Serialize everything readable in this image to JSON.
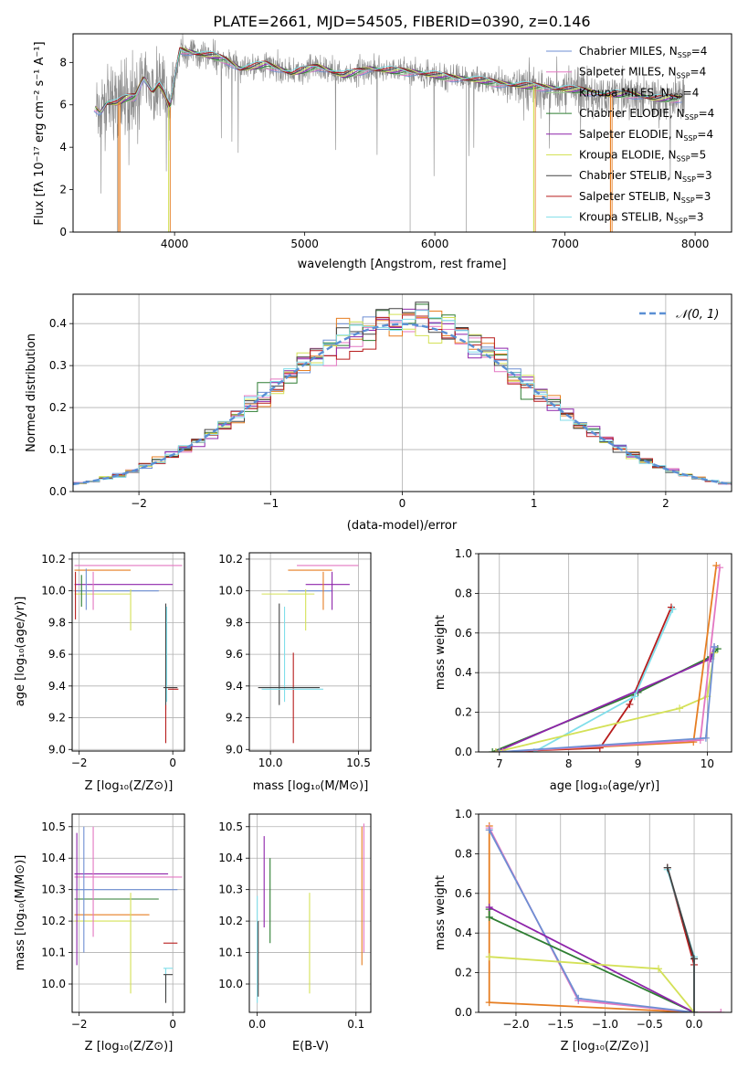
{
  "figure": {
    "title": "PLATE=2661, MJD=54505, FIBERID=0390, z=0.146"
  },
  "chart_data": [
    {
      "id": "spectrum",
      "type": "line",
      "xlabel": "wavelength [Angstrom, rest frame]",
      "ylabel": "Flux [fλ 10⁻¹⁷ erg cm⁻² s⁻¹ A⁻¹]",
      "xlim": [
        3220,
        8280
      ],
      "ylim": [
        0,
        9.35
      ],
      "xticks": [
        4000,
        5000,
        6000,
        7000,
        8000
      ],
      "yticks": [
        0,
        2,
        4,
        6,
        8
      ],
      "legend_position": "top-right",
      "legend": [
        {
          "label": "Chabrier MILES, N",
          "sub": "SSP",
          "tail": "=4",
          "color": "#6e8fd3"
        },
        {
          "label": "Salpeter MILES, N",
          "sub": "SSP",
          "tail": "=4",
          "color": "#e377c2"
        },
        {
          "label": "Kroupa MILES, N",
          "sub": "SSP",
          "tail": "=4",
          "color": "#9acd8e"
        },
        {
          "label": "Chabrier ELODIE, N",
          "sub": "SSP",
          "tail": "=4",
          "color": "#2e7d32"
        },
        {
          "label": "Salpeter ELODIE, N",
          "sub": "SSP",
          "tail": "=4",
          "color": "#8e24aa"
        },
        {
          "label": "Kroupa ELODIE, N",
          "sub": "SSP",
          "tail": "=5",
          "color": "#d4e157"
        },
        {
          "label": "Chabrier STELIB, N",
          "sub": "SSP",
          "tail": "=3",
          "color": "#424242"
        },
        {
          "label": "Salpeter STELIB, N",
          "sub": "SSP",
          "tail": "=3",
          "color": "#b71c1c"
        },
        {
          "label": "Kroupa STELIB, N",
          "sub": "SSP",
          "tail": "=3",
          "color": "#80deea"
        }
      ],
      "data_line": {
        "color": "#888888",
        "x_start": 3400,
        "x_end": 7920
      },
      "model_continuum": {
        "x": [
          3380,
          3430,
          3480,
          3560,
          3620,
          3700,
          3760,
          3830,
          3880,
          3930,
          3960,
          4000,
          4040,
          4100,
          4200,
          4300,
          4400,
          4500,
          4700,
          4900,
          5100,
          5300,
          5500,
          5700,
          5900,
          6100,
          6300,
          6500,
          6700,
          6900,
          7100,
          7300,
          7500,
          7700,
          7900
        ],
        "y": [
          5.9,
          5.6,
          6.1,
          6.1,
          6.3,
          6.4,
          7.3,
          6.6,
          7.0,
          6.4,
          5.8,
          7.2,
          8.6,
          8.5,
          8.4,
          8.3,
          8.1,
          7.7,
          7.9,
          7.5,
          7.8,
          7.4,
          7.7,
          7.6,
          7.5,
          7.3,
          7.2,
          7.0,
          6.9,
          6.8,
          6.7,
          6.5,
          6.5,
          6.3,
          6.3
        ]
      },
      "model_dropouts_x": [
        3570,
        3955,
        6760,
        7350
      ]
    },
    {
      "id": "residuals",
      "type": "line",
      "xlabel": "(data-model)/error",
      "ylabel": "Normed distribution",
      "xlim": [
        -2.5,
        2.5
      ],
      "ylim": [
        0,
        0.47
      ],
      "xticks": [
        -2,
        -1,
        0,
        1,
        2
      ],
      "yticks": [
        0.0,
        0.1,
        0.2,
        0.3,
        0.4
      ],
      "grid": true,
      "legend_position": "top-right",
      "legend": [
        {
          "label": "𝒩(0, 1)",
          "color": "#5b8fd4",
          "dash": true
        }
      ],
      "bin_width": 0.1
    },
    {
      "id": "age-vs-Z",
      "type": "scatter",
      "xlabel": "Z [log₁₀(Z/Z⊙)]",
      "ylabel": "age  [log₁₀(age/yr)]",
      "xlim": [
        -2.15,
        0.25
      ],
      "ylim": [
        8.99,
        10.24
      ],
      "xticks": [
        -2,
        0
      ],
      "yticks": [
        9.0,
        9.2,
        9.4,
        9.6,
        9.8,
        10.0,
        10.2
      ],
      "grid": true,
      "segments": [
        {
          "x1": -2.1,
          "y1": 10.16,
          "x2": 0.2,
          "y2": 10.16,
          "color": "#e377c2"
        },
        {
          "x1": -2.1,
          "y1": 10.13,
          "x2": -0.9,
          "y2": 10.13,
          "color": "#e67e22"
        },
        {
          "x1": -2.1,
          "y1": 10.04,
          "x2": 0.0,
          "y2": 10.04,
          "color": "#8e24aa"
        },
        {
          "x1": -2.1,
          "y1": 10.0,
          "x2": -0.3,
          "y2": 10.0,
          "color": "#6e8fd3"
        },
        {
          "x1": -2.1,
          "y1": 9.98,
          "x2": -0.9,
          "y2": 9.98,
          "color": "#d4e157"
        },
        {
          "x1": -2.08,
          "y1": 9.82,
          "x2": -2.08,
          "y2": 10.12,
          "color": "#b71c1c"
        },
        {
          "x1": -1.95,
          "y1": 9.9,
          "x2": -1.95,
          "y2": 10.1,
          "color": "#2e7d32"
        },
        {
          "x1": -1.85,
          "y1": 9.88,
          "x2": -1.85,
          "y2": 10.14,
          "color": "#6e8fd3"
        },
        {
          "x1": -1.7,
          "y1": 9.88,
          "x2": -1.7,
          "y2": 10.12,
          "color": "#e377c2"
        },
        {
          "x1": -0.9,
          "y1": 9.75,
          "x2": -0.9,
          "y2": 10.01,
          "color": "#d4e157"
        },
        {
          "x1": -0.15,
          "y1": 9.25,
          "x2": -0.15,
          "y2": 9.92,
          "color": "#424242"
        },
        {
          "x1": -0.13,
          "y1": 9.3,
          "x2": -0.13,
          "y2": 9.9,
          "color": "#80deea"
        },
        {
          "x1": -0.15,
          "y1": 9.04,
          "x2": -0.15,
          "y2": 9.28,
          "color": "#b71c1c"
        },
        {
          "x1": -0.2,
          "y1": 9.39,
          "x2": 0.1,
          "y2": 9.39,
          "color": "#424242"
        },
        {
          "x1": -0.1,
          "y1": 9.38,
          "x2": 0.12,
          "y2": 9.38,
          "color": "#b71c1c"
        }
      ]
    },
    {
      "id": "age-vs-mass",
      "type": "scatter",
      "xlabel": "mass [log₁₀(M/M⊙)]",
      "ylabel": "",
      "xlim": [
        9.88,
        10.57
      ],
      "ylim": [
        8.99,
        10.24
      ],
      "xticks": [
        10.0,
        10.5
      ],
      "yticks": [
        9.0,
        9.2,
        9.4,
        9.6,
        9.8,
        10.0,
        10.2
      ],
      "grid": true,
      "segments": [
        {
          "x1": 10.15,
          "y1": 10.16,
          "x2": 10.5,
          "y2": 10.16,
          "color": "#e377c2"
        },
        {
          "x1": 10.1,
          "y1": 10.13,
          "x2": 10.35,
          "y2": 10.13,
          "color": "#e67e22"
        },
        {
          "x1": 10.2,
          "y1": 10.04,
          "x2": 10.45,
          "y2": 10.04,
          "color": "#8e24aa"
        },
        {
          "x1": 10.1,
          "y1": 10.0,
          "x2": 10.35,
          "y2": 10.0,
          "color": "#6e8fd3"
        },
        {
          "x1": 9.95,
          "y1": 9.98,
          "x2": 10.25,
          "y2": 9.98,
          "color": "#d4e157"
        },
        {
          "x1": 10.3,
          "y1": 9.88,
          "x2": 10.3,
          "y2": 10.12,
          "color": "#e67e22"
        },
        {
          "x1": 10.35,
          "y1": 9.88,
          "x2": 10.35,
          "y2": 10.12,
          "color": "#8e24aa"
        },
        {
          "x1": 10.2,
          "y1": 9.75,
          "x2": 10.2,
          "y2": 10.01,
          "color": "#d4e157"
        },
        {
          "x1": 10.05,
          "y1": 9.28,
          "x2": 10.05,
          "y2": 9.92,
          "color": "#424242"
        },
        {
          "x1": 10.08,
          "y1": 9.3,
          "x2": 10.08,
          "y2": 9.9,
          "color": "#80deea"
        },
        {
          "x1": 10.13,
          "y1": 9.04,
          "x2": 10.13,
          "y2": 9.61,
          "color": "#b71c1c"
        },
        {
          "x1": 9.93,
          "y1": 9.39,
          "x2": 10.28,
          "y2": 9.39,
          "color": "#424242"
        },
        {
          "x1": 9.95,
          "y1": 9.38,
          "x2": 10.3,
          "y2": 9.38,
          "color": "#80deea"
        }
      ]
    },
    {
      "id": "weight-vs-age",
      "type": "line",
      "xlabel": "age  [log₁₀(age/yr)]",
      "ylabel": "mass weight",
      "xlim": [
        6.7,
        10.35
      ],
      "ylim": [
        0,
        1.0
      ],
      "xticks": [
        7,
        8,
        9,
        10
      ],
      "yticks": [
        0.0,
        0.2,
        0.4,
        0.6,
        0.8,
        1.0
      ],
      "grid": true,
      "series": [
        {
          "color": "#b71c1c",
          "x": [
            6.95,
            8.45,
            8.88,
            9.48
          ],
          "y": [
            0.0,
            0.02,
            0.24,
            0.73
          ]
        },
        {
          "color": "#2e7d32",
          "x": [
            6.9,
            9.0,
            10.05,
            10.15
          ],
          "y": [
            0.0,
            0.3,
            0.48,
            0.52
          ]
        },
        {
          "color": "#8e24aa",
          "x": [
            6.95,
            9.0,
            10.05,
            10.1
          ],
          "y": [
            0.0,
            0.31,
            0.47,
            0.53
          ]
        },
        {
          "color": "#80deea",
          "x": [
            7.5,
            8.95,
            9.5
          ],
          "y": [
            0.0,
            0.28,
            0.72
          ]
        },
        {
          "color": "#d4e157",
          "x": [
            6.95,
            9.6,
            10.0,
            10.1
          ],
          "y": [
            0.0,
            0.22,
            0.28,
            0.5
          ]
        },
        {
          "color": "#e67e22",
          "x": [
            7.0,
            9.8,
            10.13
          ],
          "y": [
            0.0,
            0.05,
            0.94
          ]
        },
        {
          "color": "#e377c2",
          "x": [
            7.05,
            9.9,
            10.18
          ],
          "y": [
            0.0,
            0.06,
            0.93
          ]
        },
        {
          "color": "#6e8fd3",
          "x": [
            7.0,
            9.98,
            10.1
          ],
          "y": [
            0.0,
            0.07,
            0.53
          ]
        }
      ]
    },
    {
      "id": "mass-vs-Z",
      "type": "scatter",
      "xlabel": "Z [log₁₀(Z/Z⊙)]",
      "ylabel": "mass [log₁₀(M/M⊙)]",
      "xlim": [
        -2.15,
        0.25
      ],
      "ylim": [
        9.91,
        10.54
      ],
      "xticks": [
        -2,
        0
      ],
      "yticks": [
        10.0,
        10.1,
        10.2,
        10.3,
        10.4,
        10.5
      ],
      "grid": true,
      "segments": [
        {
          "x1": -2.1,
          "y1": 10.35,
          "x2": -0.1,
          "y2": 10.35,
          "color": "#8e24aa"
        },
        {
          "x1": -2.1,
          "y1": 10.34,
          "x2": 0.2,
          "y2": 10.34,
          "color": "#e377c2"
        },
        {
          "x1": -2.1,
          "y1": 10.3,
          "x2": 0.1,
          "y2": 10.3,
          "color": "#6e8fd3"
        },
        {
          "x1": -2.1,
          "y1": 10.27,
          "x2": -0.3,
          "y2": 10.27,
          "color": "#2e7d32"
        },
        {
          "x1": -2.1,
          "y1": 10.22,
          "x2": -0.5,
          "y2": 10.22,
          "color": "#e67e22"
        },
        {
          "x1": -2.1,
          "y1": 10.2,
          "x2": -0.9,
          "y2": 10.2,
          "color": "#d4e157"
        },
        {
          "x1": -2.05,
          "y1": 10.06,
          "x2": -2.05,
          "y2": 10.48,
          "color": "#8e24aa"
        },
        {
          "x1": -1.9,
          "y1": 10.1,
          "x2": -1.9,
          "y2": 10.5,
          "color": "#6e8fd3"
        },
        {
          "x1": -1.7,
          "y1": 10.15,
          "x2": -1.7,
          "y2": 10.5,
          "color": "#e377c2"
        },
        {
          "x1": -0.9,
          "y1": 9.97,
          "x2": -0.9,
          "y2": 10.29,
          "color": "#d4e157"
        },
        {
          "x1": -0.15,
          "y1": 9.96,
          "x2": -0.15,
          "y2": 10.05,
          "color": "#80deea"
        },
        {
          "x1": -0.15,
          "y1": 9.94,
          "x2": -0.15,
          "y2": 10.03,
          "color": "#424242"
        },
        {
          "x1": -0.2,
          "y1": 10.13,
          "x2": 0.1,
          "y2": 10.13,
          "color": "#b71c1c"
        },
        {
          "x1": -0.2,
          "y1": 10.05,
          "x2": 0.0,
          "y2": 10.05,
          "color": "#80deea"
        },
        {
          "x1": -0.2,
          "y1": 10.03,
          "x2": 0.0,
          "y2": 10.03,
          "color": "#424242"
        }
      ]
    },
    {
      "id": "mass-vs-ebv",
      "type": "scatter",
      "xlabel": "E(B-V)",
      "ylabel": "",
      "xlim": [
        -0.008,
        0.115
      ],
      "ylim": [
        9.91,
        10.54
      ],
      "xticks": [
        0.0,
        0.1
      ],
      "yticks": [
        10.0,
        10.1,
        10.2,
        10.3,
        10.4,
        10.5
      ],
      "grid": true,
      "segments": [
        {
          "x1": 0.0,
          "y1": 9.94,
          "x2": 0.0,
          "y2": 10.28,
          "color": "#80deea"
        },
        {
          "x1": 0.001,
          "y1": 9.96,
          "x2": 0.001,
          "y2": 10.2,
          "color": "#424242"
        },
        {
          "x1": 0.007,
          "y1": 10.18,
          "x2": 0.007,
          "y2": 10.47,
          "color": "#8e24aa"
        },
        {
          "x1": 0.013,
          "y1": 10.13,
          "x2": 0.013,
          "y2": 10.4,
          "color": "#2e7d32"
        },
        {
          "x1": 0.053,
          "y1": 9.97,
          "x2": 0.053,
          "y2": 10.29,
          "color": "#d4e157"
        },
        {
          "x1": 0.106,
          "y1": 10.06,
          "x2": 0.106,
          "y2": 10.5,
          "color": "#e67e22"
        },
        {
          "x1": 0.108,
          "y1": 10.1,
          "x2": 0.108,
          "y2": 10.51,
          "color": "#e377c2"
        }
      ]
    },
    {
      "id": "weight-vs-Z",
      "type": "line",
      "xlabel": "Z [log₁₀(Z/Z⊙)]",
      "ylabel": "mass weight",
      "xlim": [
        -2.42,
        0.42
      ],
      "ylim": [
        0,
        1.0
      ],
      "xticks": [
        -2.0,
        -1.5,
        -1.0,
        -0.5,
        0.0
      ],
      "yticks": [
        0.0,
        0.2,
        0.4,
        0.6,
        0.8,
        1.0
      ],
      "grid": true,
      "series": [
        {
          "color": "#e67e22",
          "x": [
            -2.3,
            -2.3,
            0.0
          ],
          "y": [
            0.94,
            0.05,
            0.0
          ]
        },
        {
          "color": "#e377c2",
          "x": [
            -2.3,
            -1.3,
            0.0,
            0.3
          ],
          "y": [
            0.93,
            0.06,
            0.0,
            0.0
          ]
        },
        {
          "color": "#6e8fd3",
          "x": [
            -2.3,
            -1.3,
            0.0
          ],
          "y": [
            0.92,
            0.07,
            0.0
          ]
        },
        {
          "color": "#2e7d32",
          "x": [
            -2.3,
            -2.3,
            0.0
          ],
          "y": [
            0.52,
            0.48,
            0.0
          ]
        },
        {
          "color": "#8e24aa",
          "x": [
            -2.3,
            0.0
          ],
          "y": [
            0.53,
            0.0
          ]
        },
        {
          "color": "#d4e157",
          "x": [
            -2.3,
            -0.4,
            0.0
          ],
          "y": [
            0.28,
            0.22,
            0.0
          ]
        },
        {
          "color": "#b71c1c",
          "x": [
            -0.3,
            0.0
          ],
          "y": [
            0.73,
            0.24
          ]
        },
        {
          "color": "#80deea",
          "x": [
            -0.3,
            0.0,
            0.0
          ],
          "y": [
            0.72,
            0.28,
            0.0
          ]
        },
        {
          "color": "#424242",
          "x": [
            -0.3,
            0.0,
            0.0
          ],
          "y": [
            0.73,
            0.27,
            0.0
          ]
        }
      ]
    }
  ]
}
